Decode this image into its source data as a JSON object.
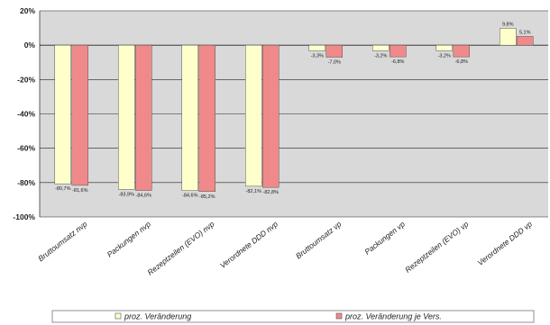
{
  "chart_data": {
    "type": "bar",
    "categories": [
      "Bruttoumsatz nvp",
      "Packungen nvp",
      "Rezeptzeilen (EVO) nvp",
      "Verordnete DDD nvp",
      "Bruttoumsatz vp",
      "Packungen vp",
      "Rezeptzeilen (EVO) vp",
      "Verordnete DDD vp"
    ],
    "series": [
      {
        "name": "proz. Veränderung",
        "values": [
          -80.7,
          -83.9,
          -84.6,
          -82.1,
          -3.3,
          -3.2,
          -3.2,
          9.8
        ],
        "labels": [
          "-80,7%",
          "-83,9%",
          "-84,6%",
          "-82,1%",
          "-3,3%",
          "-3,2%",
          "-3,2%",
          "9,8%"
        ],
        "color": "#ffffcc"
      },
      {
        "name": "proz. Veränderung je Vers.",
        "values": [
          -81.6,
          -84.6,
          -85.2,
          -82.8,
          -7.0,
          -6.8,
          -6.8,
          5.1
        ],
        "labels": [
          "-81,6%",
          "-84,6%",
          "-85,2%",
          "-82,8%",
          "-7,0%",
          "-6,8%",
          "-6,8%",
          "5,1%"
        ],
        "color": "#f08a8a"
      }
    ],
    "ylim": [
      -100,
      20
    ],
    "yticks": [
      20,
      0,
      -20,
      -40,
      -60,
      -80,
      -100
    ],
    "ytick_labels": [
      "20%",
      "0%",
      "-20%",
      "-40%",
      "-60%",
      "-80%",
      "-100%"
    ],
    "grid": true,
    "legend_position": "bottom",
    "colors": {
      "plot_background": "#d9d9d9",
      "gridline": "#222222",
      "bar_outline": "#555555"
    }
  }
}
